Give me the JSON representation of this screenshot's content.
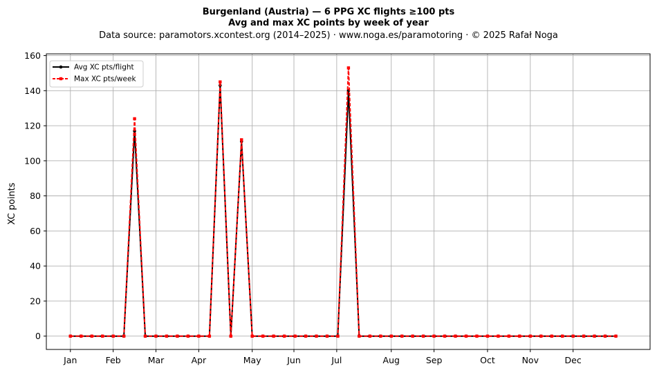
{
  "header": {
    "title_line1": "Burgenland (Austria)  —  6 PPG XC flights ≥100 pts",
    "title_line2": "Avg and max XC points by week of year",
    "source_line": "Data source: paramotors.xcontest.org (2014–2025)  ·  www.noga.es/paramotoring  ·  © 2025 Rafał Noga"
  },
  "chart_data": {
    "type": "line",
    "title": "Burgenland (Austria)  —  6 PPG XC flights ≥100 pts",
    "subtitle": "Avg and max XC points by week of year",
    "xlabel": "",
    "ylabel": "XC points",
    "x_unit": "week of year",
    "x": [
      1,
      2,
      3,
      4,
      5,
      6,
      7,
      8,
      9,
      10,
      11,
      12,
      13,
      14,
      15,
      16,
      17,
      18,
      19,
      20,
      21,
      22,
      23,
      24,
      25,
      26,
      27,
      28,
      29,
      30,
      31,
      32,
      33,
      34,
      35,
      36,
      37,
      38,
      39,
      40,
      41,
      42,
      43,
      44,
      45,
      46,
      47,
      48,
      49,
      50,
      51,
      52
    ],
    "xlim": [
      -1.25,
      55.2
    ],
    "ylim": [
      -7.6,
      161
    ],
    "x_ticks": [
      {
        "label": "Jan",
        "week": 1.0
      },
      {
        "label": "Feb",
        "week": 5.0
      },
      {
        "label": "Mar",
        "week": 9.0
      },
      {
        "label": "Apr",
        "week": 13.0
      },
      {
        "label": "May",
        "week": 18.0
      },
      {
        "label": "Jun",
        "week": 21.9
      },
      {
        "label": "Jul",
        "week": 25.9
      },
      {
        "label": "Aug",
        "week": 31.0
      },
      {
        "label": "Sep",
        "week": 35.0
      },
      {
        "label": "Oct",
        "week": 40.0
      },
      {
        "label": "Nov",
        "week": 44.0
      },
      {
        "label": "Dec",
        "week": 48.0
      }
    ],
    "y_ticks": [
      0,
      20,
      40,
      60,
      80,
      100,
      120,
      140,
      160
    ],
    "grid": true,
    "legend_position": "top-left",
    "series": [
      {
        "name": "Avg XC pts/flight",
        "color": "#000000",
        "style": "solid",
        "marker": "circle",
        "values": [
          0,
          0,
          0,
          0,
          0,
          0,
          117,
          0,
          0,
          0,
          0,
          0,
          0,
          0,
          143,
          0,
          111,
          0,
          0,
          0,
          0,
          0,
          0,
          0,
          0,
          0,
          140,
          0,
          0,
          0,
          0,
          0,
          0,
          0,
          0,
          0,
          0,
          0,
          0,
          0,
          0,
          0,
          0,
          0,
          0,
          0,
          0,
          0,
          0,
          0,
          0,
          0
        ]
      },
      {
        "name": "Max XC pts/week",
        "color": "#ff0000",
        "style": "dashed",
        "marker": "square",
        "values": [
          0,
          0,
          0,
          0,
          0,
          0,
          124,
          0,
          0,
          0,
          0,
          0,
          0,
          0,
          145,
          0,
          112,
          0,
          0,
          0,
          0,
          0,
          0,
          0,
          0,
          0,
          153,
          0,
          0,
          0,
          0,
          0,
          0,
          0,
          0,
          0,
          0,
          0,
          0,
          0,
          0,
          0,
          0,
          0,
          0,
          0,
          0,
          0,
          0,
          0,
          0,
          0
        ]
      }
    ]
  }
}
